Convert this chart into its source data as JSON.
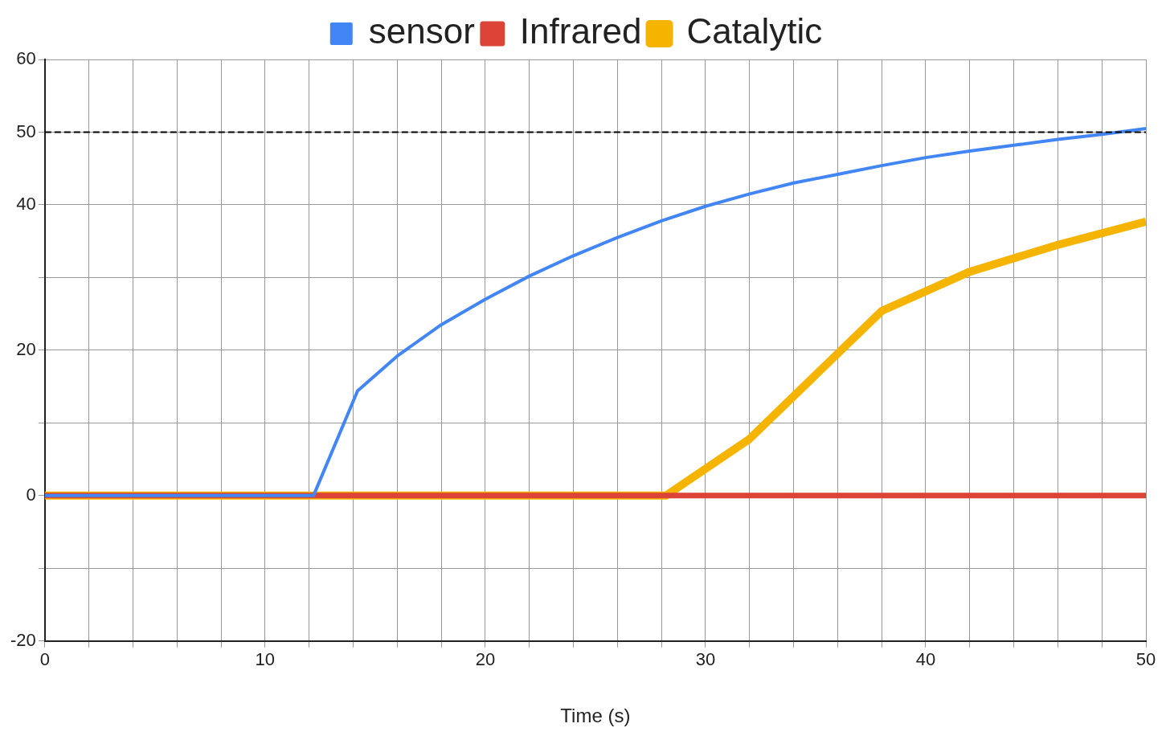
{
  "chart_data": {
    "type": "line",
    "xlabel": "Time (s)",
    "legend": "top",
    "grid": true,
    "marker": "none",
    "line_style": "solid",
    "xlim": [
      0,
      50
    ],
    "xticks": [
      0,
      {
        "value": 2,
        "label": null
      },
      {
        "value": 4,
        "label": null
      },
      {
        "value": 6,
        "label": null
      },
      {
        "value": 8,
        "label": null
      },
      10,
      {
        "value": 12,
        "label": null
      },
      {
        "value": 14,
        "label": null
      },
      {
        "value": 16,
        "label": null
      },
      {
        "value": 18,
        "label": null
      },
      20,
      {
        "value": 22,
        "label": null
      },
      {
        "value": 24,
        "label": null
      },
      {
        "value": 26,
        "label": null
      },
      {
        "value": 28,
        "label": null
      },
      30,
      {
        "value": 32,
        "label": null
      },
      {
        "value": 34,
        "label": null
      },
      {
        "value": 36,
        "label": null
      },
      {
        "value": 38,
        "label": null
      },
      40,
      {
        "value": 42,
        "label": null
      },
      {
        "value": 44,
        "label": null
      },
      {
        "value": 46,
        "label": null
      },
      {
        "value": 48,
        "label": null
      },
      50
    ],
    "ylim": [
      -20,
      60
    ],
    "yticks": [
      -20,
      {
        "value": -10,
        "label": null
      },
      0,
      {
        "value": 10,
        "label": null
      },
      20,
      {
        "value": 30,
        "label": null
      },
      40,
      50,
      60
    ],
    "ref_lines": [
      {
        "axis": "y",
        "value": 50,
        "color": "#000000",
        "line_style": "dashed"
      }
    ],
    "series": [
      {
        "name": "sensor",
        "color": "#4285f4",
        "x": [
          0,
          12.2,
          14.2,
          16,
          18,
          20,
          22,
          24,
          26,
          28,
          30,
          32,
          34,
          36,
          38,
          40,
          42,
          44,
          46,
          48,
          50
        ],
        "values": [
          0,
          0,
          14.4,
          19.2,
          23.5,
          27,
          30.2,
          33,
          35.5,
          37.8,
          39.8,
          41.5,
          43,
          44.2,
          45.4,
          46.5,
          47.4,
          48.2,
          49,
          49.7,
          50.5
        ]
      },
      {
        "name": "Infrared",
        "color": "#db4437",
        "x": [
          0,
          50
        ],
        "values": [
          0,
          0
        ]
      },
      {
        "name": "Catalytic",
        "color": "#f4b400",
        "x": [
          0,
          28.2,
          32,
          38,
          42,
          46,
          50
        ],
        "values": [
          0,
          0,
          7.8,
          25.4,
          30.8,
          34.5,
          37.7
        ]
      }
    ]
  }
}
